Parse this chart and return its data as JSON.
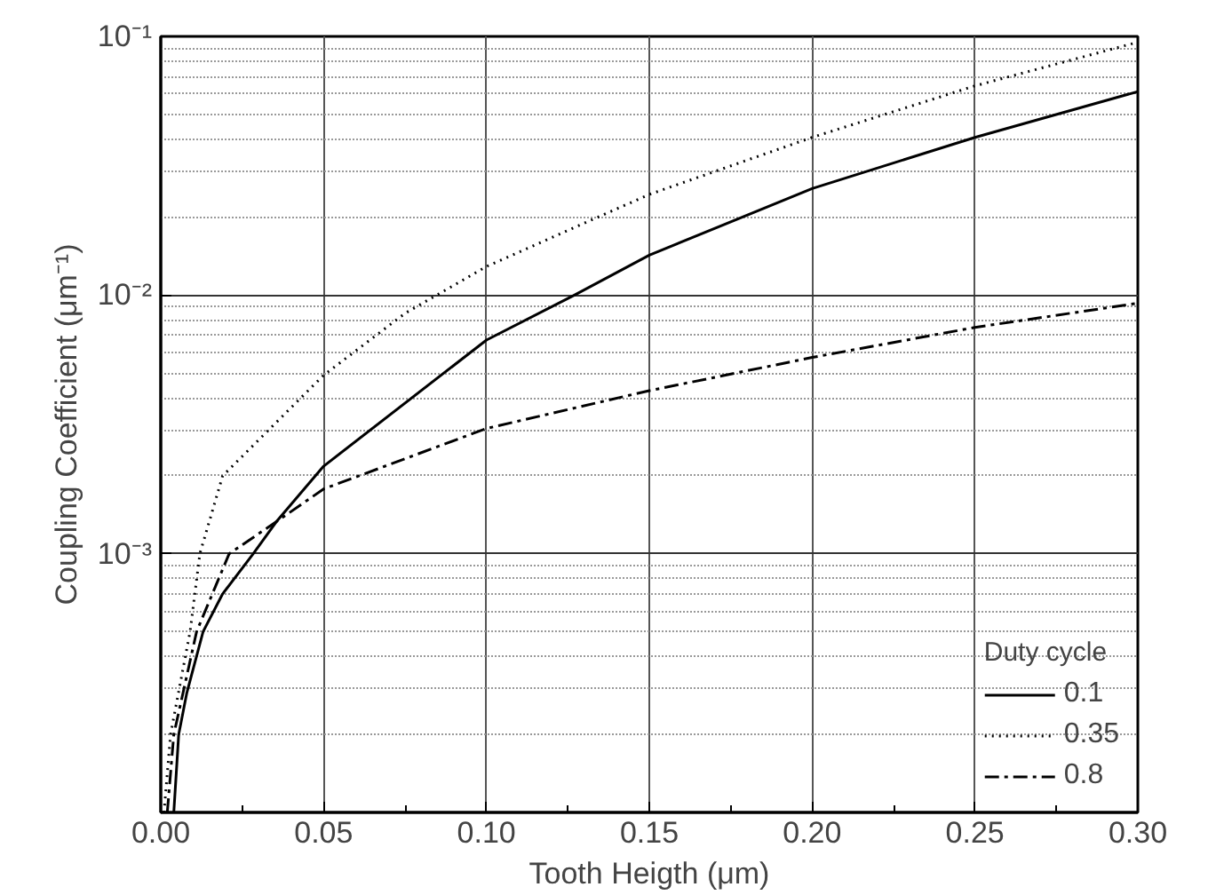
{
  "chart_data": {
    "type": "line",
    "xlabel": "Tooth Heigth (μm)",
    "ylabel": "Coupling Coefficient (μm⁻¹)",
    "legend_title": "Duty cycle",
    "legend": "bottom right",
    "log": "y",
    "grid": true,
    "xlim": [
      0,
      0.3
    ],
    "ylim": [
      0.0001,
      0.1
    ],
    "xticks": [
      {
        "value": 0,
        "label": "0.00"
      },
      {
        "value": 0.05,
        "label": "0.05"
      },
      {
        "value": 0.1,
        "label": "0.10"
      },
      {
        "value": 0.15,
        "label": "0.15"
      },
      {
        "value": 0.2,
        "label": "0.20"
      },
      {
        "value": 0.25,
        "label": "0.25"
      },
      {
        "value": 0.3,
        "label": "0.30"
      }
    ],
    "yticks": [
      {
        "value": 0.001,
        "label": "10⁻³"
      },
      {
        "value": 0.01,
        "label": "10⁻²"
      },
      {
        "value": 0.1,
        "label": "10⁻¹"
      }
    ],
    "series": [
      {
        "name": "0.1",
        "color": "#000000",
        "line_style": "solid",
        "x": [
          0.004,
          0.0055,
          0.008,
          0.013,
          0.019,
          0.0284,
          0.0355,
          0.05,
          0.1,
          0.127,
          0.15,
          0.2,
          0.25,
          0.3
        ],
        "values": [
          0.0001,
          0.0002,
          0.00029,
          0.0005,
          0.0007,
          0.001,
          0.00133,
          0.00218,
          0.0067,
          0.01,
          0.01427,
          0.0258,
          0.0407,
          0.0612
        ]
      },
      {
        "name": "0.35",
        "color": "#000000",
        "line_style": "dotted",
        "x": [
          0.001,
          0.003,
          0.009,
          0.012,
          0.019,
          0.05,
          0.075,
          0.1,
          0.15,
          0.2,
          0.25,
          0.3
        ],
        "values": [
          0.0001,
          0.0002,
          0.0005,
          0.001,
          0.002,
          0.0049,
          0.0085,
          0.0129,
          0.0245,
          0.0407,
          0.0644,
          0.095
        ]
      },
      {
        "name": "0.8",
        "color": "#000000",
        "line_style": "dashdot",
        "x": [
          0.002,
          0.004,
          0.011,
          0.021,
          0.0355,
          0.05,
          0.1,
          0.15,
          0.2,
          0.25,
          0.3
        ],
        "values": [
          0.0001,
          0.0002,
          0.0005,
          0.001,
          0.00133,
          0.00178,
          0.00305,
          0.00427,
          0.00574,
          0.0075,
          0.0093
        ]
      }
    ]
  }
}
